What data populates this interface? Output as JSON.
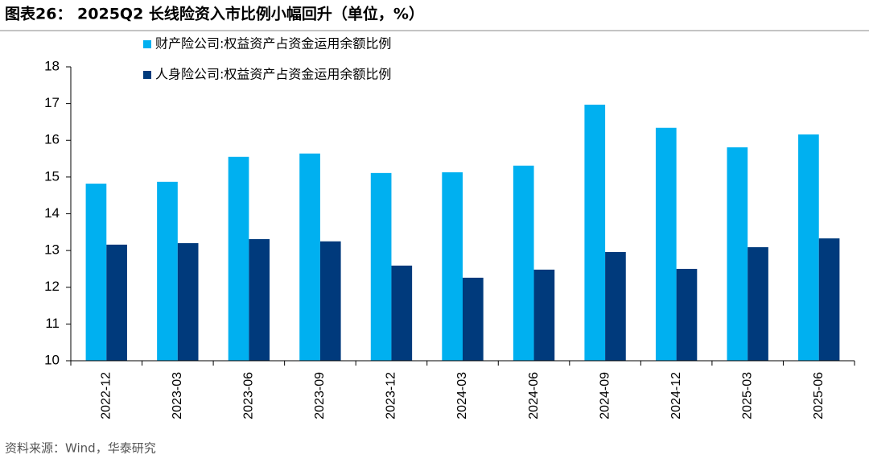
{
  "chart_data": {
    "type": "bar",
    "title": "图表26： 2025Q2 长线险资入市比例小幅回升（单位，%）",
    "source": "资料来源：Wind，华泰研究",
    "categories": [
      "2022-12",
      "2023-03",
      "2023-06",
      "2023-09",
      "2023-12",
      "2024-03",
      "2024-06",
      "2024-09",
      "2024-12",
      "2025-03",
      "2025-06"
    ],
    "series": [
      {
        "name": "财产险公司:权益资产占资金运用余额比例",
        "color": "#00b0f0",
        "values": [
          14.82,
          14.87,
          15.55,
          15.64,
          15.11,
          15.13,
          15.31,
          16.97,
          16.34,
          15.81,
          16.16
        ]
      },
      {
        "name": "人身险公司:权益资产占资金运用余额比例",
        "color": "#003a7c",
        "values": [
          13.16,
          13.2,
          13.31,
          13.25,
          12.59,
          12.26,
          12.48,
          12.96,
          12.5,
          13.09,
          13.33
        ]
      }
    ],
    "ylim": [
      10,
      18
    ],
    "yticks": [
      10,
      11,
      12,
      13,
      14,
      15,
      16,
      17,
      18
    ],
    "legend": "top-left"
  }
}
